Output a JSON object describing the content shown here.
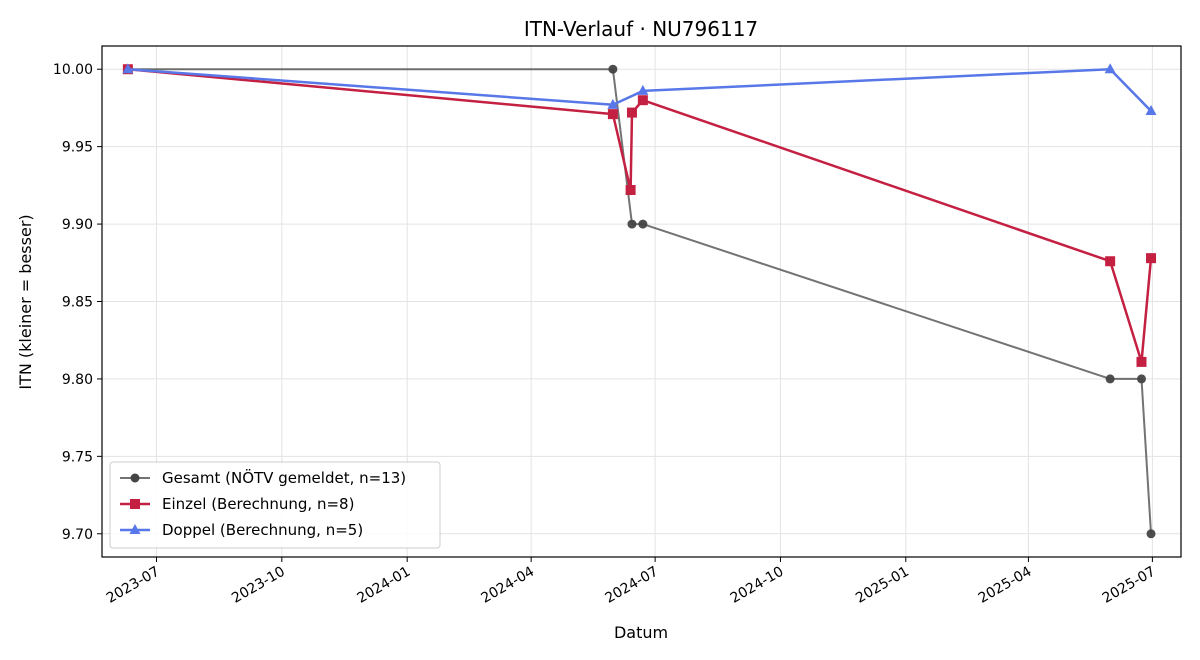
{
  "chart_data": {
    "type": "line",
    "title": "ITN-Verlauf · NU796117",
    "xlabel": "Datum",
    "ylabel": "ITN  (kleiner = besser)",
    "x_type": "date",
    "xlim": [
      "2023-05-22",
      "2025-07-22"
    ],
    "ylim": [
      9.685,
      10.015
    ],
    "x_ticks": [
      "2023-07-01",
      "2023-10-01",
      "2024-01-01",
      "2024-04-01",
      "2024-07-01",
      "2024-10-01",
      "2025-01-01",
      "2025-04-01",
      "2025-07-01"
    ],
    "x_tick_labels": [
      "2023-07",
      "2023-10",
      "2024-01",
      "2024-04",
      "2024-07",
      "2024-10",
      "2025-01",
      "2025-04",
      "2025-07"
    ],
    "y_ticks": [
      9.7,
      9.75,
      9.8,
      9.85,
      9.9,
      9.95,
      10.0
    ],
    "y_tick_labels": [
      "9.70",
      "9.75",
      "9.80",
      "9.85",
      "9.90",
      "9.95",
      "10.00"
    ],
    "grid": true,
    "legend_position": "lower-left",
    "series": [
      {
        "name": "Gesamt (NÖTV gemeldet, n=13)",
        "color": "#444444",
        "marker": "circle",
        "points": [
          {
            "x": "2023-06-10",
            "y": 10.0
          },
          {
            "x": "2024-05-31",
            "y": 10.0
          },
          {
            "x": "2024-06-14",
            "y": 9.9
          },
          {
            "x": "2024-06-22",
            "y": 9.9
          },
          {
            "x": "2025-05-31",
            "y": 9.8
          },
          {
            "x": "2025-06-23",
            "y": 9.8
          },
          {
            "x": "2025-06-30",
            "y": 9.7
          }
        ]
      },
      {
        "name": "Einzel (Berechnung, n=8)",
        "color": "#c42042",
        "marker": "square",
        "points": [
          {
            "x": "2023-06-10",
            "y": 10.0
          },
          {
            "x": "2024-05-31",
            "y": 9.971
          },
          {
            "x": "2024-06-13",
            "y": 9.922
          },
          {
            "x": "2024-06-14",
            "y": 9.972
          },
          {
            "x": "2024-06-22",
            "y": 9.98
          },
          {
            "x": "2025-05-31",
            "y": 9.876
          },
          {
            "x": "2025-06-23",
            "y": 9.811
          },
          {
            "x": "2025-06-30",
            "y": 9.878
          }
        ]
      },
      {
        "name": "Doppel (Berechnung, n=5)",
        "color": "#5877e8",
        "marker": "triangle",
        "points": [
          {
            "x": "2023-06-10",
            "y": 10.0
          },
          {
            "x": "2024-05-31",
            "y": 9.977
          },
          {
            "x": "2024-06-22",
            "y": 9.986
          },
          {
            "x": "2025-05-31",
            "y": 10.0
          },
          {
            "x": "2025-06-30",
            "y": 9.973
          }
        ]
      }
    ]
  }
}
